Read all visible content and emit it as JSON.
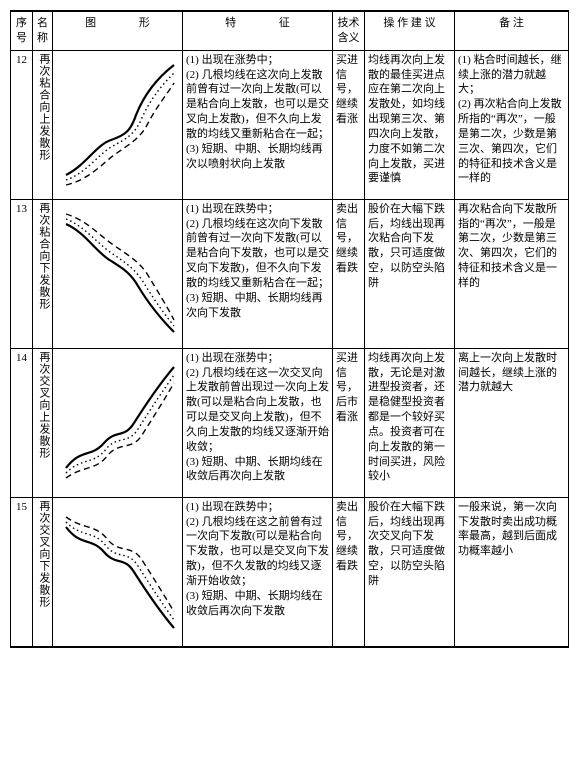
{
  "headers": {
    "num": "序号",
    "name": "名称",
    "shape": "图   形",
    "feat": "特    征",
    "tech": "技术含义",
    "op": "操 作 建 议",
    "note": "备 注"
  },
  "rows": [
    {
      "num": "12",
      "name": "再次粘合向上发散形",
      "feat": "(1) 出现在涨势中；\n(2) 几根均线在这次向上发散前曾有过一次向上发散(可以是粘合向上发散，也可以是交叉向上发散)，但不久向上发散的均线又重新粘合在一起；\n(3) 短期、中期、长期均线再次以喷射状向上发散",
      "tech": "买进信号，继续看涨",
      "op": "均线再次向上发散的最佳买进点应在第二次向上发散处，如均线出现第三次、第四次向上发散，力度不如第二次向上发散，买进要谨慎",
      "note": "(1) 粘合时间越长，继续上涨的潜力就越大；\n(2) 再次粘合向上发散所指的“再次”，一般是第二次，少数是第三次、第四次，它们的特征和技术含义是一样的",
      "shape": "up-reconverge"
    },
    {
      "num": "13",
      "name": "再次粘合向下发散形",
      "feat": "(1) 出现在跌势中；\n(2) 几根均线在这次向下发散前曾有过一次向下发散(可以是粘合向下发散，也可以是交叉向下发散)，但不久向下发散的均线又重新粘合在一起；\n(3) 短期、中期、长期均线再次向下发散",
      "tech": "卖出信号，继续看跌",
      "op": "股价在大幅下跌后，均线出现再次粘合向下发散，只可适度做空，以防空头陷阱",
      "note": "再次粘合向下发散所指的“再次”，一般是第二次，少数是第三次、第四次，它们的特征和技术含义是一样的",
      "shape": "down-reconverge"
    },
    {
      "num": "14",
      "name": "再次交叉向上发散形",
      "feat": "(1) 出现在涨势中；\n(2) 几根均线在这一次交叉向上发散前曾出现过一次向上发散(可以是粘合向上发散，也可以是交叉向上发散)，但不久向上发散的均线又逐渐开始收敛；\n(3) 短期、中期、长期均线在收敛后再次向上发散",
      "tech": "买进信号，后市看涨",
      "op": "均线再次向上发散，无论是对激进型投资者，还是稳健型投资者都是一个较好买点。投资者可在向上发散的第一时间买进，风险较小",
      "note": "离上一次向上发散时间越长，继续上涨的潜力就越大",
      "shape": "up-recross"
    },
    {
      "num": "15",
      "name": "再次交叉向下发散形",
      "feat": "(1) 出现在跌势中；\n(2) 几根均线在这之前曾有过一次向下发散(可以是粘合向下发散，也可以是交叉向下发散)，但不久发散的均线又逐渐开始收敛；\n(3) 短期、中期、长期均线在收敛后再次向下发散",
      "tech": "卖出信号，继续看跌",
      "op": "股价在大幅下跌后，均线出现再次交叉向下发散，只可适度做空，以防空头陷阱",
      "note": "一般来说，第一次向下发散时卖出成功概率最高，越到后面成功概率越小",
      "shape": "down-recross"
    }
  ],
  "shape_style": {
    "width": 124,
    "height": 140,
    "stroke": "#000000",
    "bg": "#ffffff",
    "solid_w": 2.2,
    "dot_w": 1.4,
    "dash_w": 1.4
  }
}
